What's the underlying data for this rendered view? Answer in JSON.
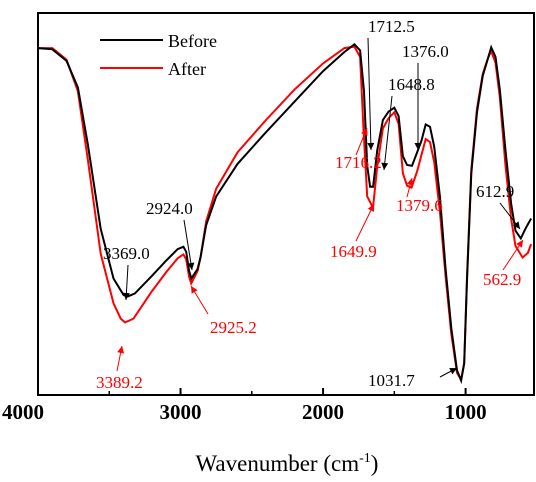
{
  "chart_data": {
    "type": "line",
    "title": "",
    "xlabel": "Wavenumber (cm",
    "xlabel_sup": "-1",
    "xlabel_end": ")",
    "ylabel": "",
    "xlim": [
      4000,
      520
    ],
    "x_reversed": true,
    "ylim": [
      0,
      1
    ],
    "x_ticks": [
      4000,
      3000,
      2000,
      1000
    ],
    "x_tick_labels": [
      "4000",
      "3000",
      "2000",
      "1000"
    ],
    "grid": false,
    "legend_position": "top-left",
    "series": [
      {
        "name": "Before",
        "color": "#000000",
        "points": [
          [
            4000,
            0.908
          ],
          [
            3900,
            0.905
          ],
          [
            3800,
            0.875
          ],
          [
            3720,
            0.805
          ],
          [
            3650,
            0.655
          ],
          [
            3560,
            0.435
          ],
          [
            3470,
            0.305
          ],
          [
            3400,
            0.262
          ],
          [
            3369,
            0.258
          ],
          [
            3320,
            0.266
          ],
          [
            3200,
            0.312
          ],
          [
            3100,
            0.352
          ],
          [
            3020,
            0.382
          ],
          [
            2980,
            0.388
          ],
          [
            2960,
            0.375
          ],
          [
            2940,
            0.325
          ],
          [
            2924,
            0.305
          ],
          [
            2880,
            0.33
          ],
          [
            2860,
            0.36
          ],
          [
            2820,
            0.445
          ],
          [
            2750,
            0.52
          ],
          [
            2600,
            0.605
          ],
          [
            2400,
            0.688
          ],
          [
            2200,
            0.768
          ],
          [
            2000,
            0.848
          ],
          [
            1850,
            0.898
          ],
          [
            1780,
            0.918
          ],
          [
            1740,
            0.902
          ],
          [
            1712.5,
            0.795
          ],
          [
            1690,
            0.6
          ],
          [
            1670,
            0.545
          ],
          [
            1648.8,
            0.545
          ],
          [
            1620,
            0.64
          ],
          [
            1580,
            0.72
          ],
          [
            1540,
            0.742
          ],
          [
            1500,
            0.752
          ],
          [
            1470,
            0.73
          ],
          [
            1440,
            0.625
          ],
          [
            1410,
            0.602
          ],
          [
            1376,
            0.6
          ],
          [
            1340,
            0.635
          ],
          [
            1310,
            0.665
          ],
          [
            1280,
            0.708
          ],
          [
            1250,
            0.702
          ],
          [
            1220,
            0.65
          ],
          [
            1180,
            0.52
          ],
          [
            1140,
            0.33
          ],
          [
            1100,
            0.175
          ],
          [
            1060,
            0.065
          ],
          [
            1031.7,
            0.038
          ],
          [
            1010,
            0.082
          ],
          [
            990,
            0.3
          ],
          [
            960,
            0.58
          ],
          [
            920,
            0.74
          ],
          [
            880,
            0.835
          ],
          [
            840,
            0.885
          ],
          [
            820,
            0.91
          ],
          [
            790,
            0.885
          ],
          [
            760,
            0.8
          ],
          [
            720,
            0.64
          ],
          [
            680,
            0.5
          ],
          [
            650,
            0.43
          ],
          [
            612.9,
            0.41
          ],
          [
            580,
            0.435
          ],
          [
            540,
            0.462
          ]
        ]
      },
      {
        "name": "After",
        "color": "#ff0000",
        "points": [
          [
            4000,
            0.908
          ],
          [
            3900,
            0.908
          ],
          [
            3800,
            0.878
          ],
          [
            3720,
            0.795
          ],
          [
            3650,
            0.615
          ],
          [
            3560,
            0.37
          ],
          [
            3470,
            0.24
          ],
          [
            3420,
            0.2
          ],
          [
            3389.2,
            0.19
          ],
          [
            3330,
            0.2
          ],
          [
            3200,
            0.272
          ],
          [
            3100,
            0.322
          ],
          [
            3020,
            0.358
          ],
          [
            2980,
            0.368
          ],
          [
            2960,
            0.355
          ],
          [
            2940,
            0.31
          ],
          [
            2925.2,
            0.292
          ],
          [
            2880,
            0.325
          ],
          [
            2860,
            0.36
          ],
          [
            2820,
            0.455
          ],
          [
            2750,
            0.54
          ],
          [
            2600,
            0.635
          ],
          [
            2400,
            0.72
          ],
          [
            2200,
            0.8
          ],
          [
            2000,
            0.868
          ],
          [
            1850,
            0.908
          ],
          [
            1780,
            0.912
          ],
          [
            1740,
            0.885
          ],
          [
            1716.2,
            0.695
          ],
          [
            1690,
            0.52
          ],
          [
            1670,
            0.505
          ],
          [
            1649.9,
            0.49
          ],
          [
            1620,
            0.598
          ],
          [
            1580,
            0.698
          ],
          [
            1540,
            0.725
          ],
          [
            1500,
            0.74
          ],
          [
            1470,
            0.71
          ],
          [
            1440,
            0.58
          ],
          [
            1410,
            0.548
          ],
          [
            1379.6,
            0.543
          ],
          [
            1340,
            0.585
          ],
          [
            1310,
            0.628
          ],
          [
            1280,
            0.67
          ],
          [
            1250,
            0.662
          ],
          [
            1220,
            0.61
          ],
          [
            1180,
            0.48
          ],
          [
            1140,
            0.31
          ],
          [
            1100,
            0.16
          ],
          [
            1060,
            0.058
          ],
          [
            1031.7,
            0.04
          ],
          [
            1010,
            0.085
          ],
          [
            990,
            0.31
          ],
          [
            960,
            0.59
          ],
          [
            920,
            0.75
          ],
          [
            880,
            0.84
          ],
          [
            840,
            0.885
          ],
          [
            820,
            0.9
          ],
          [
            790,
            0.87
          ],
          [
            760,
            0.78
          ],
          [
            720,
            0.6
          ],
          [
            680,
            0.46
          ],
          [
            650,
            0.39
          ],
          [
            600,
            0.36
          ],
          [
            562.9,
            0.372
          ],
          [
            540,
            0.395
          ]
        ]
      }
    ],
    "annotations": [
      {
        "text": "1712.5",
        "color": "#000000"
      },
      {
        "text": "1648.8",
        "color": "#000000"
      },
      {
        "text": "1376.0",
        "color": "#000000"
      },
      {
        "text": "2924.0",
        "color": "#000000"
      },
      {
        "text": "3369.0",
        "color": "#000000"
      },
      {
        "text": "612.9",
        "color": "#000000"
      },
      {
        "text": "1031.7",
        "color": "#000000"
      },
      {
        "text": "1716.2",
        "color": "#ff0000"
      },
      {
        "text": "1649.9",
        "color": "#ff0000"
      },
      {
        "text": "1379.6",
        "color": "#ff0000"
      },
      {
        "text": "2925.2",
        "color": "#ff0000"
      },
      {
        "text": "3389.2",
        "color": "#ff0000"
      },
      {
        "text": "562.9",
        "color": "#ff0000"
      }
    ]
  }
}
